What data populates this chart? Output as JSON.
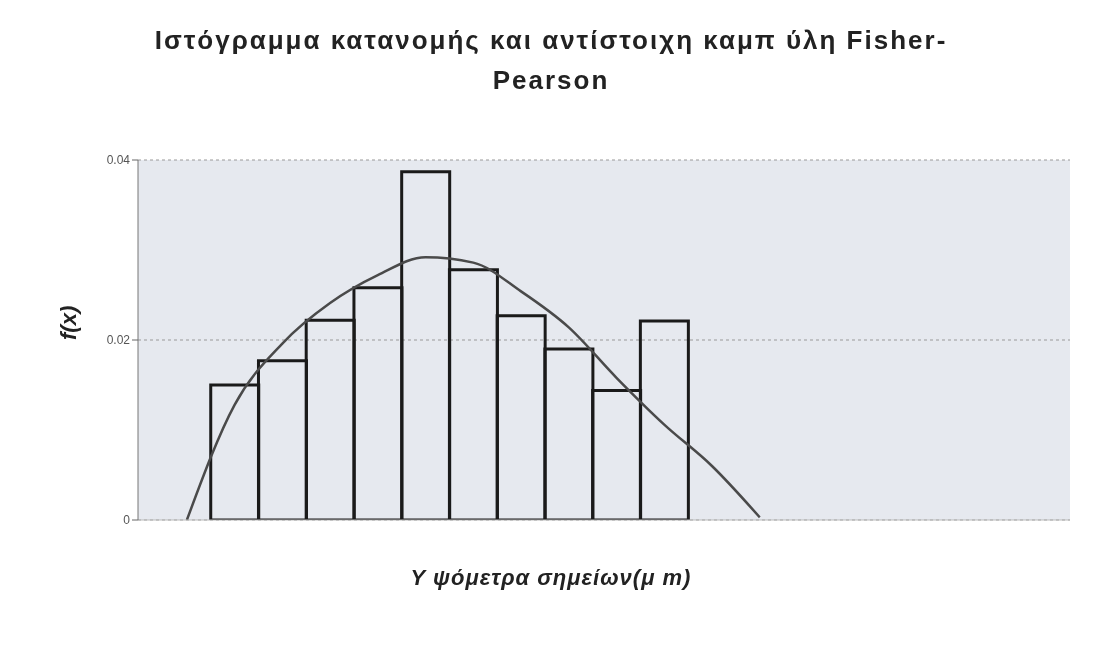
{
  "chart_data": {
    "type": "bar",
    "title": "Ιστόγραμμα κατανομής και αντίστοιχη καμπ ύλη Fisher-Pearson",
    "xlabel": "Y ψόμετρα σημείων(μ m)",
    "ylabel": "f(x)",
    "categories": [
      null,
      null,
      null,
      null,
      null,
      null,
      null,
      null,
      null,
      null,
      null,
      null,
      null,
      null,
      null,
      null,
      null,
      null,
      null
    ],
    "series": [
      {
        "color": "#1a1a1a",
        "values": [
          null,
          0.015,
          0.0177,
          0.0222,
          0.0258,
          0.0387,
          0.0278,
          0.0227,
          0.019,
          0.0144,
          0.0221,
          null,
          null,
          null,
          null,
          null,
          null,
          null,
          null
        ]
      },
      {
        "type": "line",
        "color": "#4a4a4a",
        "values": [
          0,
          0.0128,
          0.0196,
          0.0241,
          0.0272,
          0.0292,
          0.0286,
          0.0254,
          0.0214,
          0.0158,
          0.0106,
          0.006,
          0.0003,
          null,
          null,
          null,
          null,
          null,
          null
        ]
      }
    ],
    "ylim": [
      0,
      0.04
    ],
    "yticks": [
      0,
      0.02,
      0.04
    ],
    "grid": "y",
    "tick_labels": "y",
    "marker": "none"
  }
}
